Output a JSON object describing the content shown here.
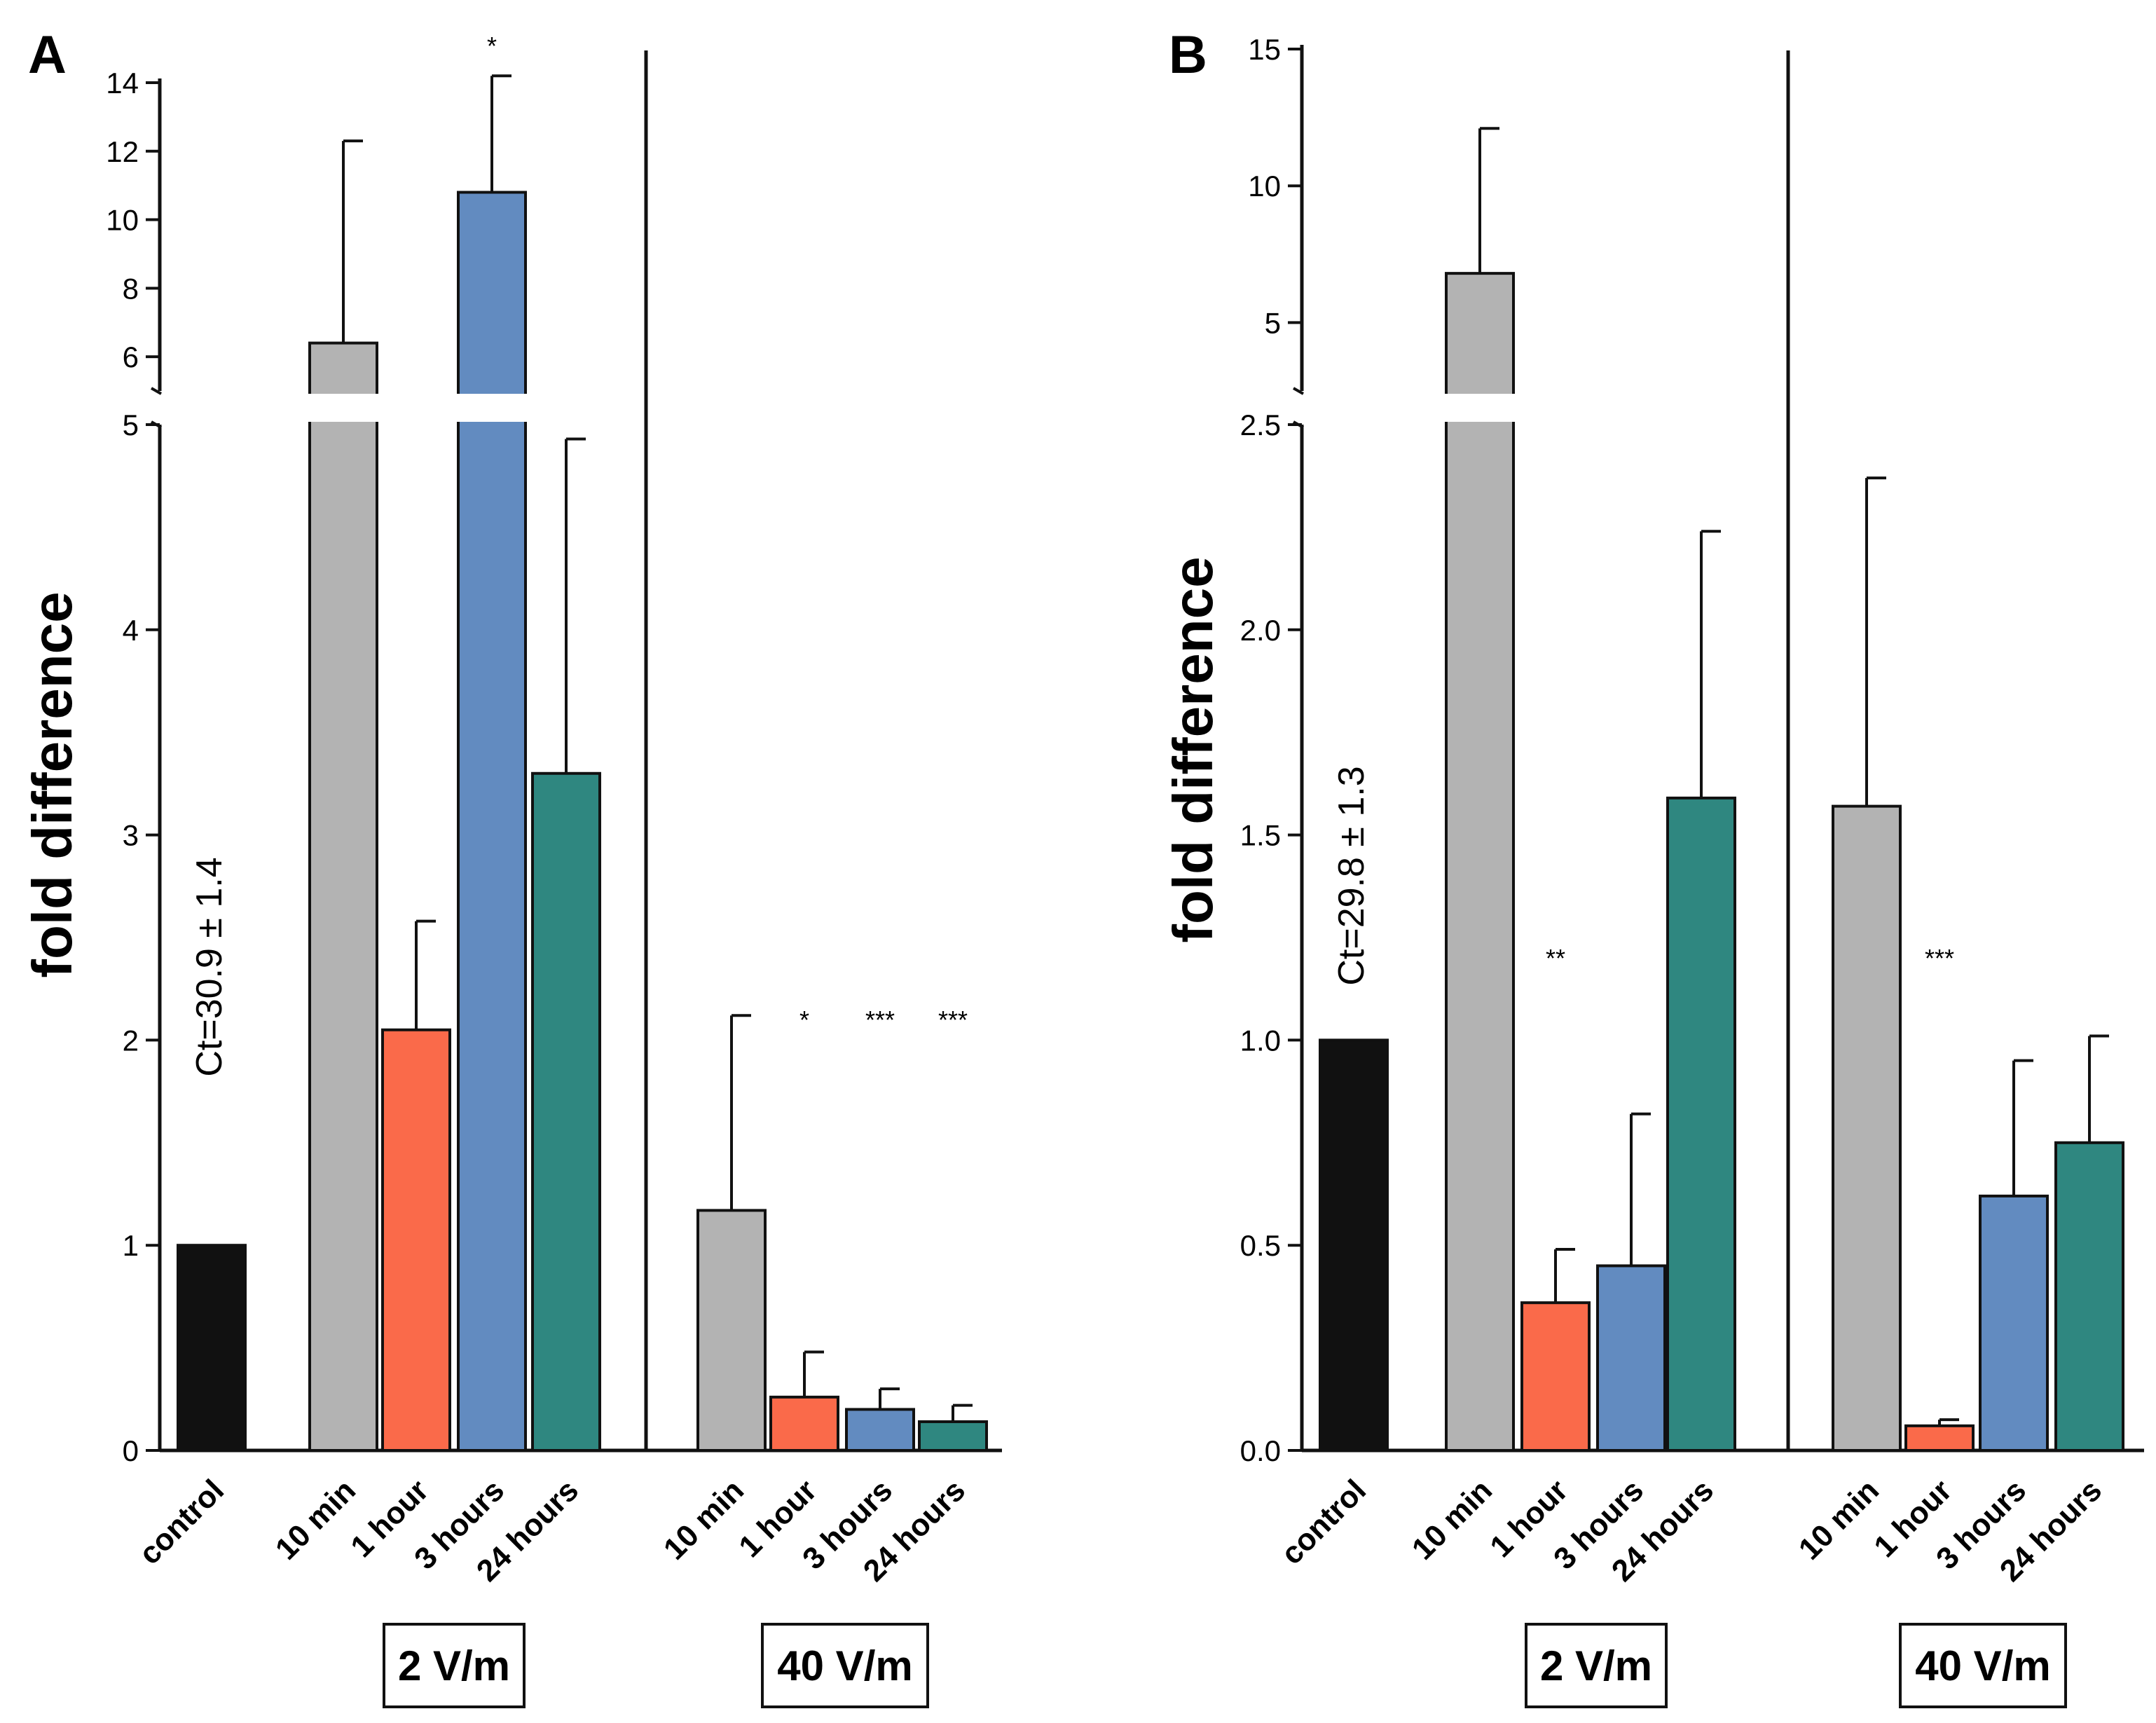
{
  "colors": {
    "control": "#111111",
    "10 min": "#b3b3b3",
    "1 hour": "#fa6a4a",
    "3 hours": "#628bc0",
    "24 hours": "#2f8780"
  },
  "chart_data": [
    {
      "panel": "A",
      "type": "bar",
      "ylabel": "fold difference",
      "broken_axis": true,
      "lower_range": [
        0,
        5
      ],
      "upper_range": [
        5,
        14
      ],
      "lower_ticks": [
        "0",
        "1",
        "2",
        "3",
        "4",
        "5"
      ],
      "upper_ticks": [
        "6",
        "8",
        "10",
        "12",
        "14"
      ],
      "annotation": "Ct=30.9 ± 1.4",
      "groups": [
        {
          "name": "",
          "bars": [
            {
              "category": "control",
              "value": 1.0,
              "error": 0,
              "sig": ""
            }
          ]
        },
        {
          "name": "2 V/m",
          "bars": [
            {
              "category": "10 min",
              "value": 6.4,
              "error": 5.9,
              "sig": ""
            },
            {
              "category": "1 hour",
              "value": 2.05,
              "error": 0.53,
              "sig": ""
            },
            {
              "category": "3 hours",
              "value": 10.8,
              "error": 3.4,
              "sig": "*"
            },
            {
              "category": "24 hours",
              "value": 3.3,
              "error": 1.63,
              "sig": ""
            }
          ]
        },
        {
          "name": "40 V/m",
          "bars": [
            {
              "category": "10 min",
              "value": 1.17,
              "error": 0.95,
              "sig": ""
            },
            {
              "category": "1 hour",
              "value": 0.26,
              "error": 0.22,
              "sig": "*"
            },
            {
              "category": "3 hours",
              "value": 0.2,
              "error": 0.1,
              "sig": "***"
            },
            {
              "category": "24 hours",
              "value": 0.14,
              "error": 0.08,
              "sig": "***"
            }
          ]
        }
      ]
    },
    {
      "panel": "B",
      "type": "bar",
      "ylabel": "fold difference",
      "broken_axis": true,
      "lower_range": [
        0,
        2.5
      ],
      "upper_range": [
        2.5,
        15
      ],
      "lower_ticks": [
        "0.0",
        "0.5",
        "1.0",
        "1.5",
        "2.0",
        "2.5"
      ],
      "upper_ticks": [
        "5",
        "10",
        "15"
      ],
      "annotation": "Ct=29.8 ± 1.3",
      "groups": [
        {
          "name": "",
          "bars": [
            {
              "category": "control",
              "value": 1.0,
              "error": 0,
              "sig": ""
            }
          ]
        },
        {
          "name": "2 V/m",
          "bars": [
            {
              "category": "10 min",
              "value": 6.8,
              "error": 5.3,
              "sig": ""
            },
            {
              "category": "1 hour",
              "value": 0.36,
              "error": 0.13,
              "sig": "**"
            },
            {
              "category": "3 hours",
              "value": 0.45,
              "error": 0.37,
              "sig": ""
            },
            {
              "category": "24 hours",
              "value": 1.59,
              "error": 0.65,
              "sig": ""
            }
          ]
        },
        {
          "name": "40 V/m",
          "bars": [
            {
              "category": "10 min",
              "value": 1.57,
              "error": 0.8,
              "sig": ""
            },
            {
              "category": "1 hour",
              "value": 0.06,
              "error": 0.015,
              "sig": "***"
            },
            {
              "category": "3 hours",
              "value": 0.62,
              "error": 0.33,
              "sig": ""
            },
            {
              "category": "24 hours",
              "value": 0.75,
              "error": 0.26,
              "sig": ""
            }
          ]
        }
      ]
    }
  ]
}
